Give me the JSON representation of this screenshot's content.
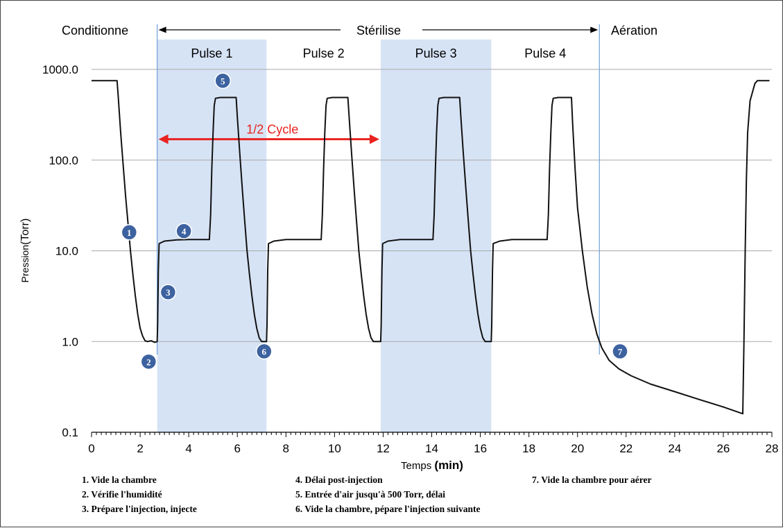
{
  "chart_data": {
    "type": "line",
    "title": "",
    "xlabel": "Temps",
    "xlabel_unit": "(min)",
    "ylabel": "Pression",
    "ylabel_unit": "(Torr)",
    "xlim": [
      0,
      28
    ],
    "ylim": [
      0.1,
      1000
    ],
    "yscale": "log",
    "xticks": [
      "0",
      "2",
      "4",
      "6",
      "8",
      "10",
      "12",
      "14",
      "16",
      "18",
      "20",
      "22",
      "24",
      "26",
      "28"
    ],
    "yticks": [
      "0.1",
      "1.0",
      "10.0",
      "100.0",
      "1000.0"
    ],
    "grid": "horizontal",
    "phases": [
      {
        "label": "Conditionne",
        "start": 0,
        "end": 2.7
      },
      {
        "label": "Stérilise",
        "start": 2.7,
        "end": 20.9
      },
      {
        "label": "Aération",
        "start": 20.9,
        "end": 28
      }
    ],
    "pulses": [
      {
        "label": "Pulse 1",
        "start": 2.7,
        "end": 7.2,
        "shaded": true
      },
      {
        "label": "Pulse 2",
        "start": 7.2,
        "end": 11.9,
        "shaded": false
      },
      {
        "label": "Pulse 3",
        "start": 11.9,
        "end": 16.45,
        "shaded": true
      },
      {
        "label": "Pulse  4",
        "start": 16.45,
        "end": 20.9,
        "shaded": false
      }
    ],
    "half_cycle": {
      "label": "1/2 Cycle",
      "start": 2.7,
      "end": 11.9,
      "y": 170,
      "color": "#e8231f"
    },
    "series": [
      {
        "color": "#111111",
        "points": [
          [
            0.0,
            750
          ],
          [
            1.05,
            750
          ],
          [
            1.1,
            500
          ],
          [
            1.2,
            200
          ],
          [
            1.3,
            90
          ],
          [
            1.4,
            40
          ],
          [
            1.5,
            20
          ],
          [
            1.6,
            10
          ],
          [
            1.7,
            5.5
          ],
          [
            1.8,
            3.2
          ],
          [
            1.9,
            2.0
          ],
          [
            2.0,
            1.4
          ],
          [
            2.1,
            1.15
          ],
          [
            2.2,
            1.02
          ],
          [
            2.3,
            1.0
          ],
          [
            2.45,
            1.02
          ],
          [
            2.6,
            0.98
          ],
          [
            2.7,
            1.0
          ],
          [
            2.72,
            1.5
          ],
          [
            2.75,
            6
          ],
          [
            2.78,
            12
          ],
          [
            3.0,
            12.8
          ],
          [
            3.5,
            13.2
          ],
          [
            4.0,
            13.3
          ],
          [
            4.85,
            13.3
          ],
          [
            4.9,
            25
          ],
          [
            4.95,
            80
          ],
          [
            5.0,
            200
          ],
          [
            5.05,
            400
          ],
          [
            5.1,
            480
          ],
          [
            5.3,
            490
          ],
          [
            5.95,
            490
          ],
          [
            6.0,
            300
          ],
          [
            6.1,
            120
          ],
          [
            6.2,
            50
          ],
          [
            6.3,
            22
          ],
          [
            6.4,
            10
          ],
          [
            6.5,
            5.5
          ],
          [
            6.6,
            3.2
          ],
          [
            6.7,
            2.0
          ],
          [
            6.8,
            1.4
          ],
          [
            6.9,
            1.1
          ],
          [
            7.0,
            1.0
          ],
          [
            7.2,
            1.0
          ],
          [
            7.22,
            1.5
          ],
          [
            7.25,
            6
          ],
          [
            7.28,
            12
          ],
          [
            7.5,
            12.8
          ],
          [
            8.0,
            13.3
          ],
          [
            9.45,
            13.3
          ],
          [
            9.5,
            25
          ],
          [
            9.55,
            80
          ],
          [
            9.6,
            200
          ],
          [
            9.65,
            400
          ],
          [
            9.7,
            480
          ],
          [
            9.9,
            490
          ],
          [
            10.55,
            490
          ],
          [
            10.6,
            300
          ],
          [
            10.7,
            120
          ],
          [
            10.8,
            50
          ],
          [
            10.9,
            22
          ],
          [
            11.0,
            10
          ],
          [
            11.1,
            5.5
          ],
          [
            11.2,
            3.2
          ],
          [
            11.3,
            2.0
          ],
          [
            11.4,
            1.4
          ],
          [
            11.5,
            1.1
          ],
          [
            11.6,
            1.0
          ],
          [
            11.9,
            1.0
          ],
          [
            11.92,
            1.5
          ],
          [
            11.95,
            6
          ],
          [
            11.98,
            12
          ],
          [
            12.2,
            12.8
          ],
          [
            12.7,
            13.3
          ],
          [
            14.05,
            13.3
          ],
          [
            14.1,
            25
          ],
          [
            14.15,
            80
          ],
          [
            14.2,
            200
          ],
          [
            14.25,
            400
          ],
          [
            14.3,
            480
          ],
          [
            14.5,
            490
          ],
          [
            15.15,
            490
          ],
          [
            15.2,
            300
          ],
          [
            15.3,
            120
          ],
          [
            15.4,
            50
          ],
          [
            15.5,
            22
          ],
          [
            15.6,
            10
          ],
          [
            15.7,
            5.5
          ],
          [
            15.8,
            3.2
          ],
          [
            15.9,
            2.0
          ],
          [
            16.0,
            1.4
          ],
          [
            16.1,
            1.1
          ],
          [
            16.2,
            1.0
          ],
          [
            16.45,
            1.0
          ],
          [
            16.47,
            1.5
          ],
          [
            16.5,
            6
          ],
          [
            16.53,
            12
          ],
          [
            16.8,
            12.8
          ],
          [
            17.3,
            13.3
          ],
          [
            18.75,
            13.3
          ],
          [
            18.8,
            25
          ],
          [
            18.85,
            80
          ],
          [
            18.9,
            200
          ],
          [
            18.95,
            400
          ],
          [
            19.0,
            480
          ],
          [
            19.2,
            490
          ],
          [
            19.75,
            490
          ],
          [
            19.8,
            250
          ],
          [
            19.9,
            80
          ],
          [
            20.0,
            30
          ],
          [
            20.2,
            10
          ],
          [
            20.4,
            4
          ],
          [
            20.6,
            2.0
          ],
          [
            20.8,
            1.2
          ],
          [
            21.0,
            0.85
          ],
          [
            21.3,
            0.62
          ],
          [
            21.7,
            0.5
          ],
          [
            22.2,
            0.42
          ],
          [
            23.0,
            0.34
          ],
          [
            24.0,
            0.28
          ],
          [
            25.0,
            0.23
          ],
          [
            26.0,
            0.19
          ],
          [
            26.8,
            0.16
          ],
          [
            26.85,
            1.0
          ],
          [
            26.9,
            10
          ],
          [
            26.95,
            60
          ],
          [
            27.0,
            200
          ],
          [
            27.1,
            450
          ],
          [
            27.3,
            700
          ],
          [
            27.4,
            750
          ],
          [
            27.9,
            750
          ]
        ]
      }
    ],
    "markers": [
      {
        "label": "1",
        "x": 1.55,
        "y": 16
      },
      {
        "label": "2",
        "x": 2.35,
        "y": 0.6
      },
      {
        "label": "3",
        "x": 3.15,
        "y": 3.5
      },
      {
        "label": "4",
        "x": 3.8,
        "y": 16.5
      },
      {
        "label": "5",
        "x": 5.4,
        "y": 750
      },
      {
        "label": "6",
        "x": 7.1,
        "y": 0.78
      },
      {
        "label": "7",
        "x": 21.75,
        "y": 0.78
      }
    ]
  },
  "legend": {
    "col1": [
      "1. Vide la chambre",
      "2. Vérifie l'humidité",
      "3. Prépare l'injection, injecte"
    ],
    "col2": [
      "4. Délai post-injection",
      "5. Entrée d'air jusqu'à 500 Torr, délai",
      "6. Vide la chambre, pépare l'injection suivante"
    ],
    "col3": [
      "7. Vide la chambre pour aérer"
    ]
  },
  "colors": {
    "shade": "#d6e3f5",
    "phase_line": "#6f9fd8",
    "marker_fill": "#3d62a0",
    "curve": "#111111",
    "half_cycle": "#e8231f"
  }
}
